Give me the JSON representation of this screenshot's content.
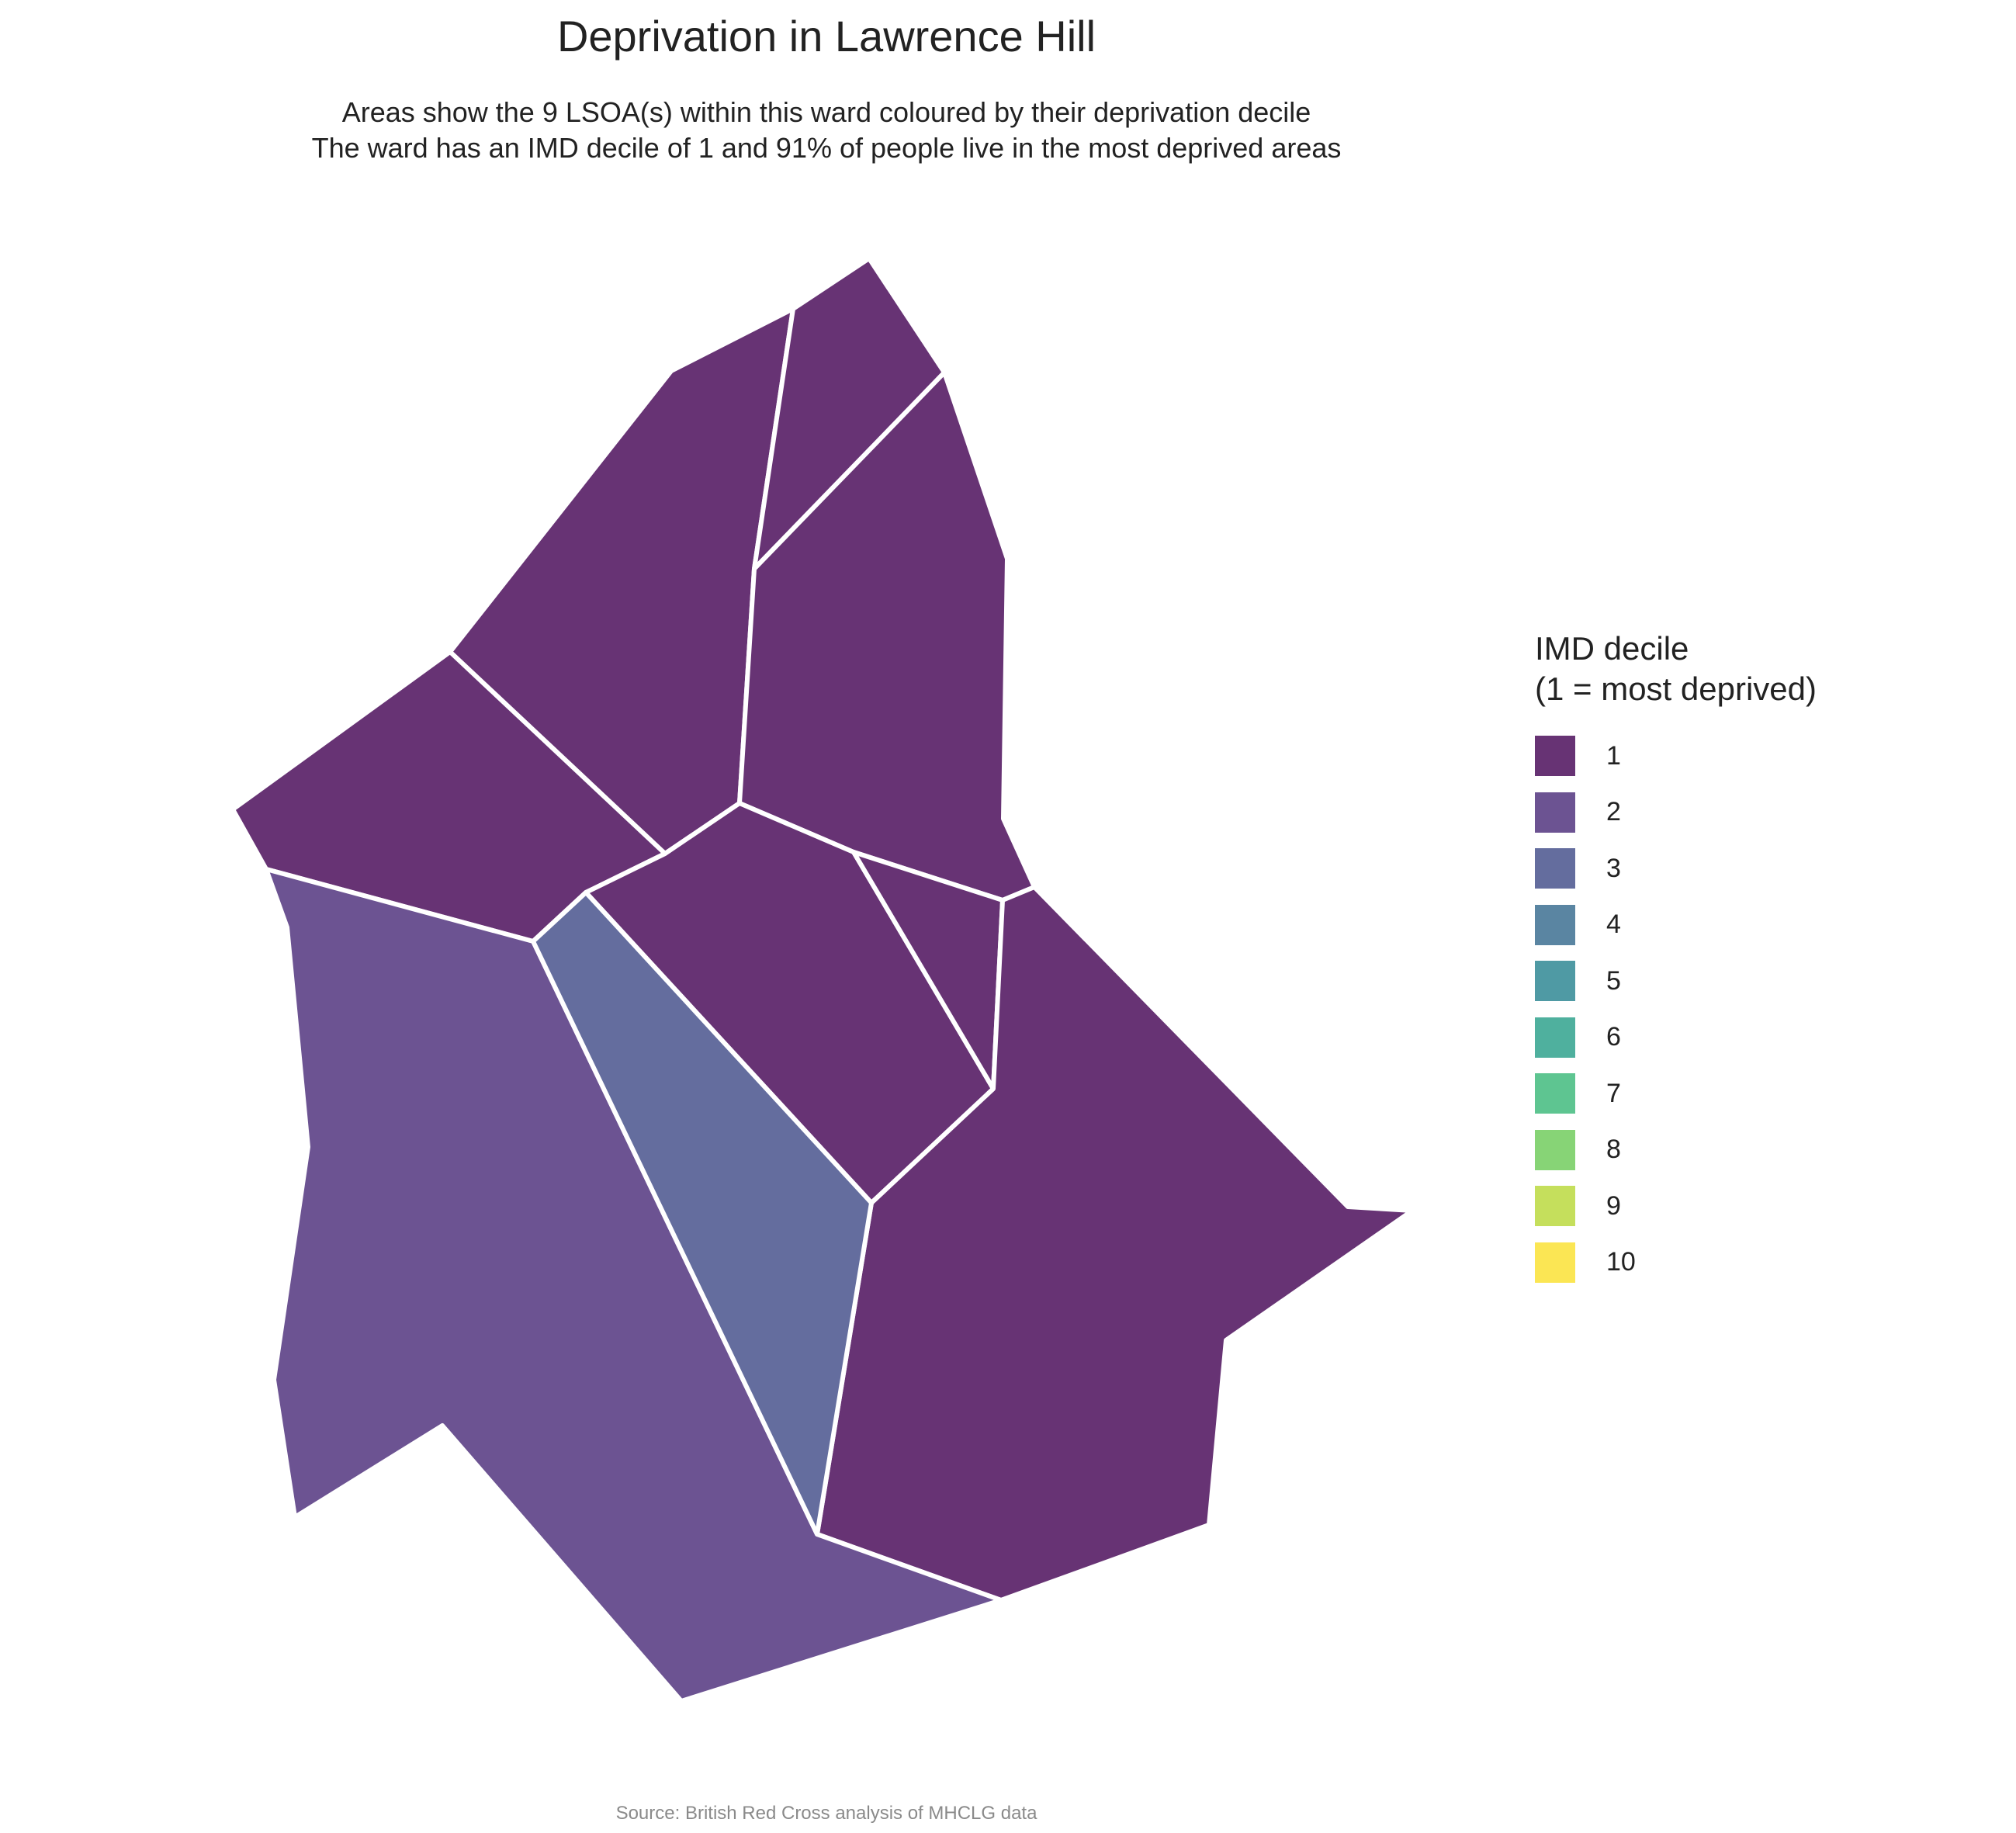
{
  "title": "Deprivation in Lawrence Hill",
  "subtitle_line1": "Areas show the 9 LSOA(s) within this ward coloured by their deprivation decile",
  "subtitle_line2": "The ward has an IMD decile of 1 and 91% of people live in the most deprived areas",
  "legend": {
    "title_line1": "IMD decile",
    "title_line2": "(1 = most deprived)",
    "items": [
      {
        "label": "1",
        "color": "#673374"
      },
      {
        "label": "2",
        "color": "#6c5392"
      },
      {
        "label": "3",
        "color": "#646d9e"
      },
      {
        "label": "4",
        "color": "#5a85a2"
      },
      {
        "label": "5",
        "color": "#4f9aa4"
      },
      {
        "label": "6",
        "color": "#4fb09e"
      },
      {
        "label": "7",
        "color": "#5ec591"
      },
      {
        "label": "8",
        "color": "#87d476"
      },
      {
        "label": "9",
        "color": "#c5df5c"
      },
      {
        "label": "10",
        "color": "#fbe654"
      }
    ]
  },
  "areas": [
    {
      "name": "north-west-lsoa",
      "decile": 1
    },
    {
      "name": "north-tip-lsoa",
      "decile": 1
    },
    {
      "name": "north-east-lsoa",
      "decile": 1
    },
    {
      "name": "west-lsoa",
      "decile": 1
    },
    {
      "name": "central-lsoa",
      "decile": 1
    },
    {
      "name": "central-east-lsoa",
      "decile": 1
    },
    {
      "name": "south-east-lsoa",
      "decile": 1
    },
    {
      "name": "south-west-lsoa",
      "decile": 2
    },
    {
      "name": "south-central-lsoa",
      "decile": 3
    }
  ],
  "caption": "Source: British Red Cross analysis of MHCLG data"
}
